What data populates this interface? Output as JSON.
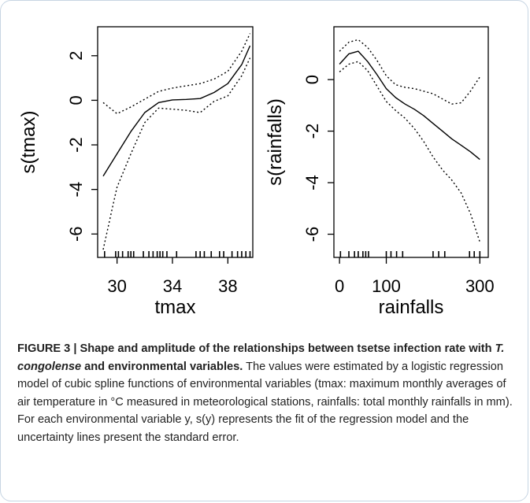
{
  "chart_data": [
    {
      "type": "line",
      "xlabel": "tmax",
      "ylabel": "s(tmax)",
      "xticks": [
        30,
        34,
        38
      ],
      "yticks": [
        2,
        0,
        -2,
        -4,
        -6
      ],
      "xlim": [
        28.6,
        39.8
      ],
      "ylim": [
        -7.05,
        3.3
      ],
      "series": [
        {
          "x": [
            29,
            30,
            31,
            32,
            33,
            34,
            35,
            36,
            37,
            38,
            39,
            39.6
          ],
          "y": [
            -3.4,
            -2.4,
            -1.4,
            -0.55,
            -0.1,
            0.02,
            0.04,
            0.08,
            0.35,
            0.75,
            1.6,
            2.45
          ]
        },
        {
          "x": [
            29,
            30,
            31,
            32,
            33,
            34,
            35,
            36,
            37,
            38,
            39,
            39.6
          ],
          "y": [
            -0.1,
            -0.6,
            -0.3,
            0.05,
            0.4,
            0.55,
            0.65,
            0.75,
            0.95,
            1.3,
            2.2,
            3.0
          ]
        },
        {
          "x": [
            29,
            29.6,
            30,
            31,
            32,
            33,
            34,
            35,
            36,
            37,
            38,
            39,
            39.6
          ],
          "y": [
            -6.7,
            -5.0,
            -3.9,
            -2.4,
            -1.0,
            -0.35,
            -0.4,
            -0.45,
            -0.55,
            -0.05,
            0.2,
            1.1,
            1.9
          ]
        }
      ],
      "rug_x": [
        29.1,
        29.9,
        30.1,
        30.4,
        30.8,
        31.0,
        31.2,
        31.9,
        32.3,
        32.6,
        32.9,
        33.1,
        33.3,
        33.6,
        34.3,
        35.7,
        36.0,
        36.3,
        36.8,
        37.4,
        37.7,
        38.3,
        38.7,
        39.0,
        39.3,
        39.6
      ]
    },
    {
      "type": "line",
      "xlabel": "rainfalls",
      "ylabel": "s(rainfalls)",
      "xticks": [
        0,
        100,
        300
      ],
      "yticks": [
        0,
        -2,
        -4,
        -6
      ],
      "xlim": [
        -12,
        318
      ],
      "ylim": [
        -6.9,
        2.05
      ],
      "series": [
        {
          "x": [
            0,
            20,
            40,
            60,
            80,
            100,
            120,
            140,
            160,
            180,
            200,
            220,
            240,
            260,
            280,
            300
          ],
          "y": [
            0.6,
            1.0,
            1.1,
            0.7,
            0.2,
            -0.35,
            -0.7,
            -0.95,
            -1.15,
            -1.4,
            -1.7,
            -2.0,
            -2.3,
            -2.55,
            -2.8,
            -3.1
          ]
        },
        {
          "x": [
            0,
            20,
            40,
            60,
            80,
            100,
            120,
            140,
            160,
            180,
            200,
            220,
            240,
            260,
            280,
            300
          ],
          "y": [
            1.1,
            1.45,
            1.55,
            1.25,
            0.75,
            0.15,
            -0.2,
            -0.3,
            -0.35,
            -0.45,
            -0.55,
            -0.75,
            -0.95,
            -0.9,
            -0.45,
            0.1
          ]
        },
        {
          "x": [
            0,
            20,
            40,
            60,
            80,
            100,
            120,
            140,
            160,
            180,
            200,
            220,
            240,
            260,
            280,
            300
          ],
          "y": [
            0.3,
            0.6,
            0.7,
            0.35,
            -0.25,
            -0.85,
            -1.2,
            -1.5,
            -1.9,
            -2.4,
            -3.0,
            -3.5,
            -3.9,
            -4.4,
            -5.2,
            -6.3
          ]
        }
      ],
      "rug_x": [
        2,
        20,
        32,
        40,
        50,
        56,
        62,
        100,
        110,
        122,
        135,
        200,
        212,
        225,
        278,
        288,
        300
      ]
    }
  ],
  "caption": {
    "figure_label": "FIGURE 3 | Shape and amplitude of the relationships between tsetse infection rate with ",
    "species": "T. congolense",
    "bold_tail": " and environmental variables.",
    "body": " The values were estimated by a logistic regression model of cubic spline functions of environmental variables (tmax: maximum monthly averages of air temperature in °C measured in meteorological stations, rainfalls: total monthly rainfalls in mm). For each environmental variable y, s(y) represents the fit of the regression model and the uncertainty lines present the standard error."
  }
}
